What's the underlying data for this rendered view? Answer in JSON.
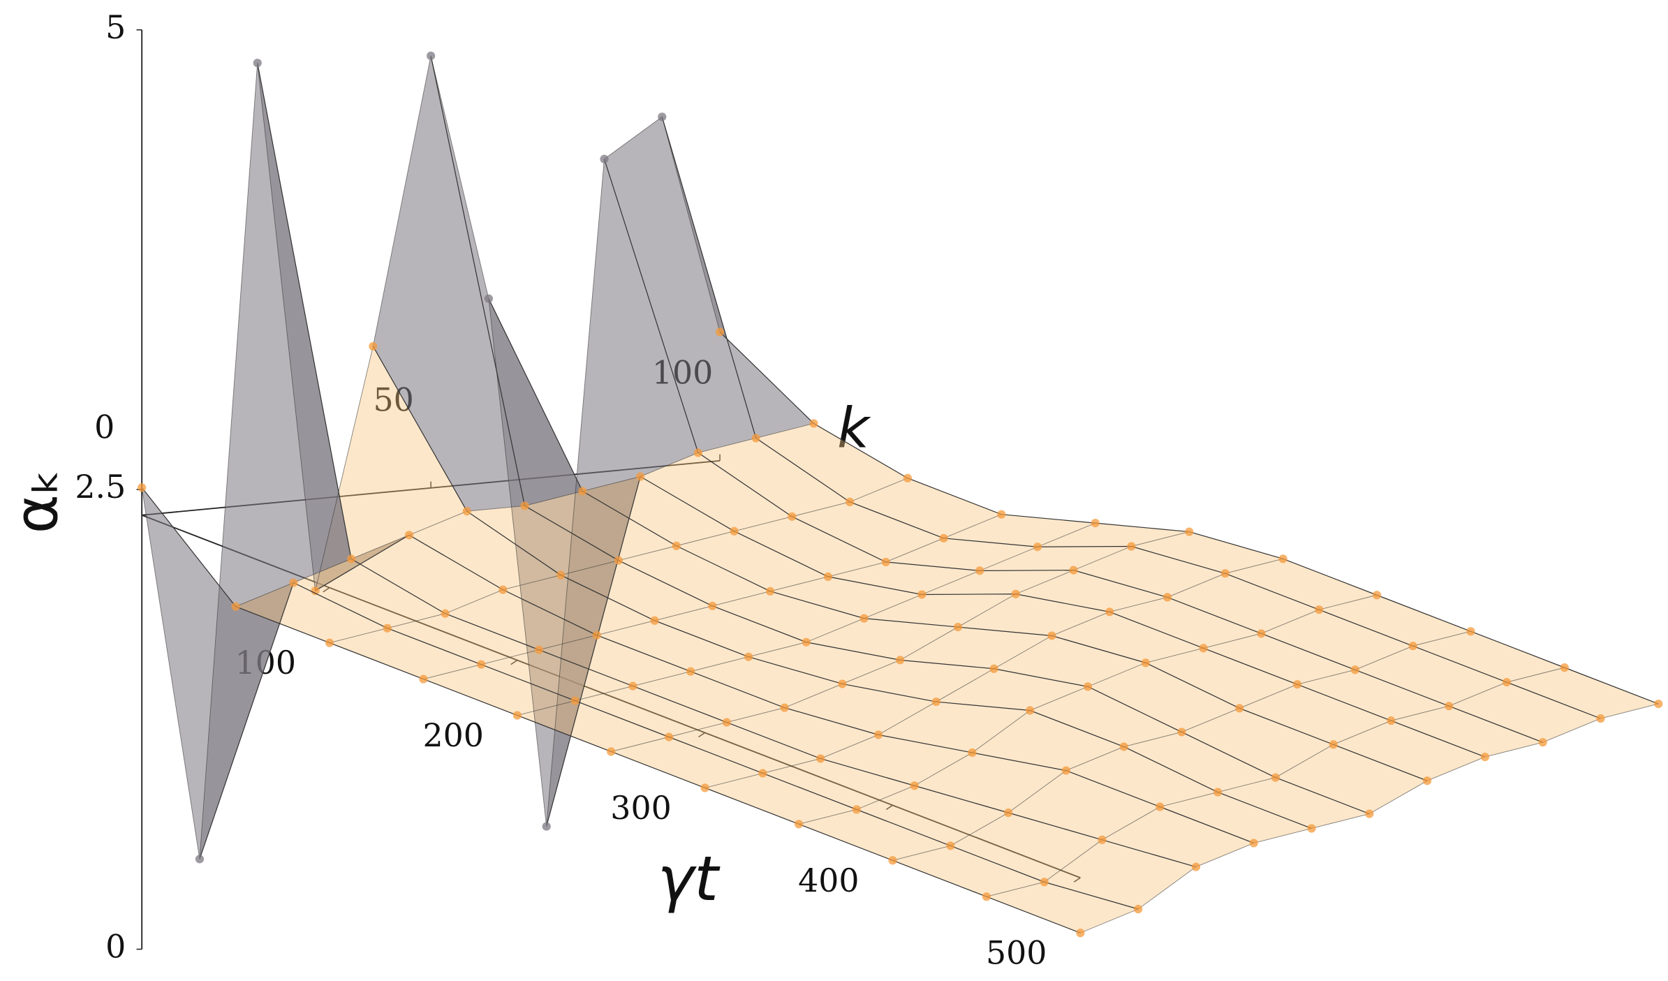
{
  "chart_data": {
    "type": "surface3d",
    "x_label": "γt",
    "y_label": "k",
    "z_label": "αₖ",
    "x": [
      0,
      50,
      100,
      150,
      200,
      250,
      300,
      350,
      400,
      450,
      500
    ],
    "y": [
      0,
      10,
      20,
      30,
      40,
      50,
      60,
      70,
      80,
      90,
      100
    ],
    "z": [
      [
        2.65,
        2.2,
        2.2,
        2.2,
        2.2,
        2.2,
        2.2,
        2.2,
        2.2,
        2.2,
        2.2
      ],
      [
        0.6,
        2.3,
        2.25,
        2.25,
        2.25,
        2.25,
        2.25,
        2.25,
        2.25,
        2.25,
        2.3
      ],
      [
        4.9,
        2.4,
        2.3,
        2.3,
        2.3,
        2.3,
        2.3,
        2.35,
        2.4,
        2.45,
        2.5
      ],
      [
        2.0,
        2.5,
        2.4,
        2.35,
        2.35,
        2.35,
        2.4,
        2.5,
        2.6,
        2.6,
        2.6
      ],
      [
        3.3,
        2.6,
        2.45,
        2.4,
        2.4,
        2.45,
        2.55,
        2.7,
        2.7,
        2.65,
        2.65
      ],
      [
        4.85,
        2.6,
        2.5,
        2.45,
        2.45,
        2.55,
        2.7,
        2.8,
        2.75,
        2.7,
        2.7
      ],
      [
        3.5,
        2.65,
        2.55,
        2.5,
        2.55,
        2.7,
        2.85,
        2.9,
        2.85,
        2.85,
        2.85
      ],
      [
        0.6,
        2.7,
        2.6,
        2.55,
        2.65,
        2.85,
        2.95,
        2.95,
        2.95,
        2.95,
        2.95
      ],
      [
        4.2,
        2.8,
        2.65,
        2.6,
        2.75,
        2.95,
        3.0,
        3.0,
        3.0,
        3.0,
        3.0
      ],
      [
        4.4,
        2.85,
        2.7,
        2.7,
        2.85,
        3.05,
        3.1,
        3.1,
        3.1,
        3.1,
        3.1
      ],
      [
        3.2,
        2.9,
        2.8,
        2.8,
        2.95,
        3.1,
        3.15,
        3.15,
        3.15,
        3.15,
        3.15
      ]
    ],
    "xlim": [
      0,
      500
    ],
    "xticks": [
      100,
      200,
      300,
      400,
      500
    ],
    "ylim": [
      0,
      100
    ],
    "yticks": [
      0,
      50,
      100
    ],
    "zlim": [
      0,
      5
    ],
    "zticks": [
      0,
      2.5,
      5
    ],
    "surface_color": "#f8c27a",
    "spike_color": "#7d7882",
    "point_color": "#f59a3a",
    "line_color": "#333333"
  }
}
